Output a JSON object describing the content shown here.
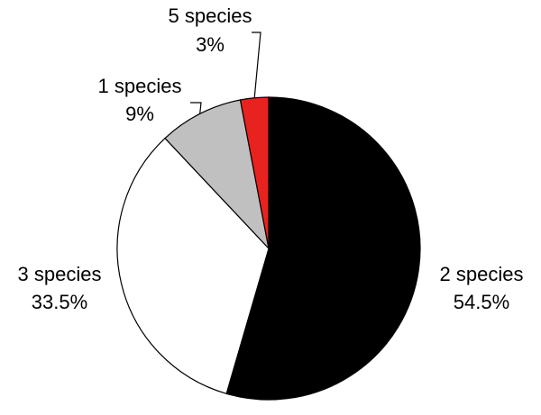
{
  "chart_data": {
    "type": "pie",
    "title": "",
    "categories": [
      "2 species",
      "3 species",
      "1 species",
      "5 species"
    ],
    "values": [
      54.5,
      33.5,
      9,
      3
    ],
    "value_labels": [
      "54.5%",
      "33.5%",
      "9%",
      "3%"
    ],
    "colors": [
      "#000000",
      "#ffffff",
      "#c0c0c0",
      "#e8231f"
    ],
    "start_angle_deg": 0,
    "direction": "clockwise",
    "legend": "none"
  }
}
